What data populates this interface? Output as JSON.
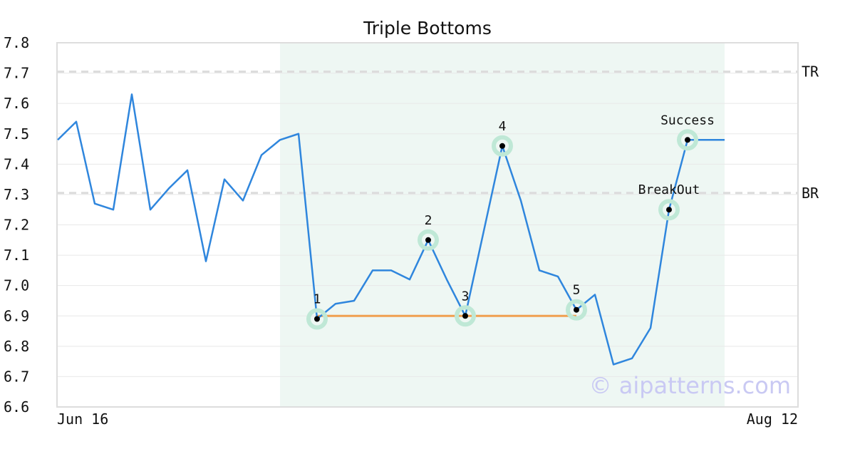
{
  "chart_data": {
    "type": "line",
    "title": "Triple Bottoms",
    "ylim": [
      6.6,
      7.8
    ],
    "yticks": [
      "6.6",
      "6.7",
      "6.8",
      "6.9",
      "7.0",
      "7.1",
      "7.2",
      "7.3",
      "7.4",
      "7.5",
      "7.6",
      "7.7",
      "7.8"
    ],
    "x_labels": [
      "Jun 16",
      "Aug 12"
    ],
    "grid": true,
    "series": [
      {
        "values": [
          7.48,
          7.54,
          7.27,
          7.25,
          7.63,
          7.25,
          7.32,
          7.38,
          7.08,
          7.35,
          7.28,
          7.43,
          7.48,
          7.5,
          6.89,
          6.94,
          6.95,
          7.05,
          7.05,
          7.02,
          7.15,
          7.02,
          6.9,
          7.18,
          7.46,
          7.28,
          7.05,
          7.03,
          6.92,
          6.97,
          6.74,
          6.76,
          6.86,
          7.25,
          7.48,
          7.48,
          7.48
        ],
        "color": "#2f86dd"
      }
    ],
    "pattern_region": {
      "start_index": 12,
      "end_index": 36,
      "color": "#eef7f3"
    },
    "levels": [
      {
        "label": "TR",
        "value": 7.705
      },
      {
        "label": "BR",
        "value": 7.305
      }
    ],
    "support_line": {
      "value": 6.9,
      "from_index": 14,
      "to_index": 28,
      "color": "#f0a050"
    },
    "points": [
      {
        "label": "1",
        "index": 14,
        "value": 6.89
      },
      {
        "label": "2",
        "index": 20,
        "value": 7.15
      },
      {
        "label": "3",
        "index": 22,
        "value": 6.9
      },
      {
        "label": "4",
        "index": 24,
        "value": 7.46
      },
      {
        "label": "5",
        "index": 28,
        "value": 6.92
      },
      {
        "label": "BreakOut",
        "index": 33,
        "value": 7.25
      },
      {
        "label": "Success",
        "index": 34,
        "value": 7.48
      }
    ],
    "watermark": "© aipatterns.com"
  }
}
